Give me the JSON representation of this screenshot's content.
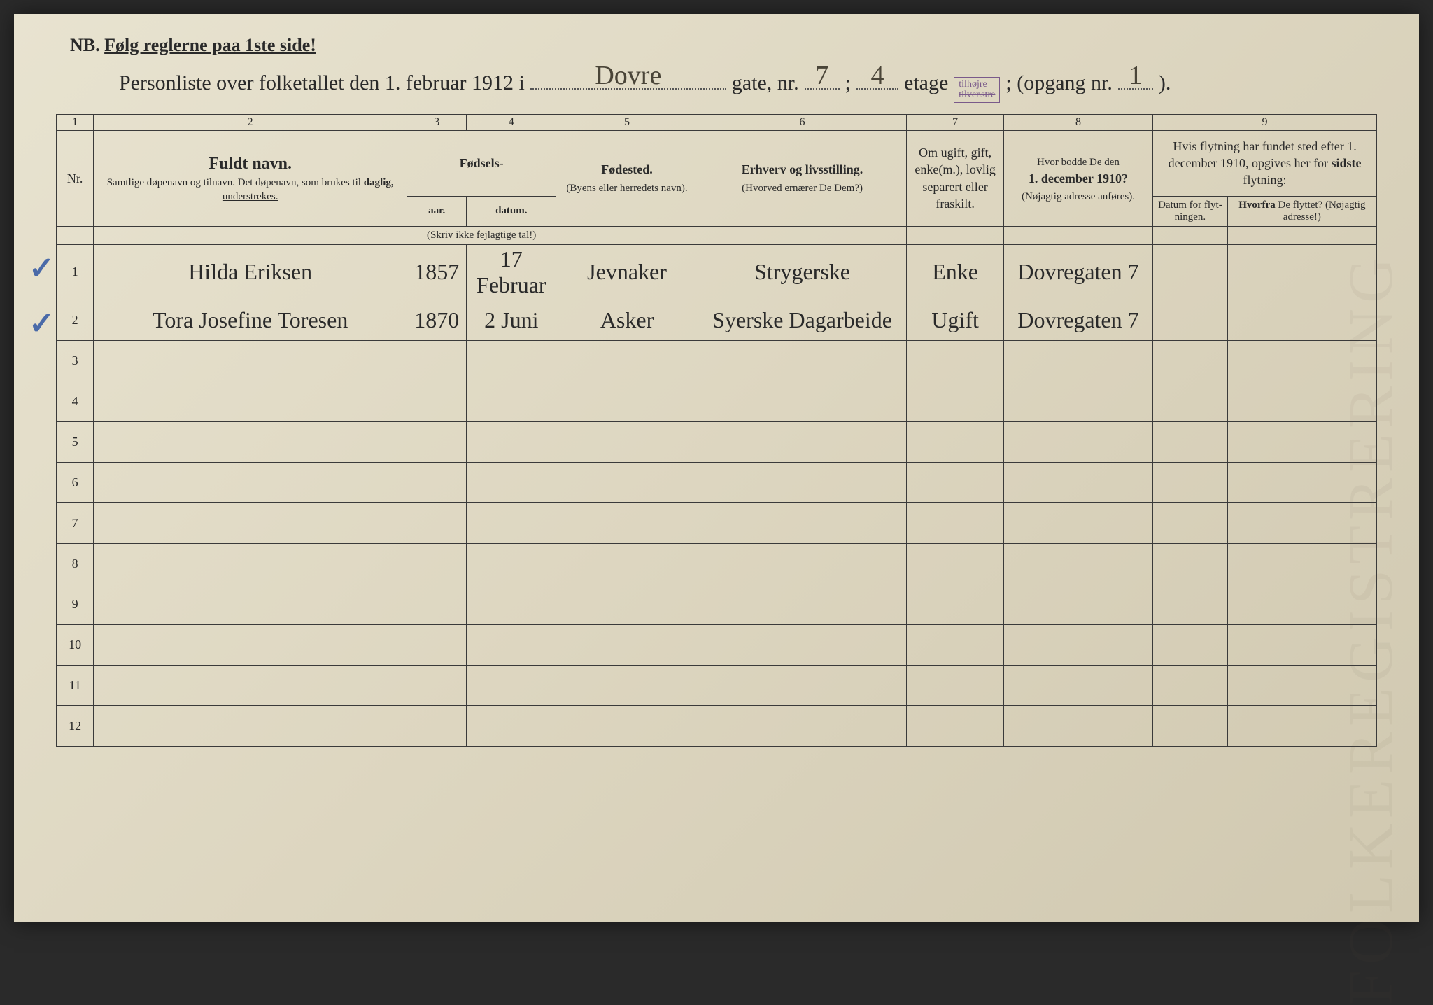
{
  "nb_prefix": "NB.",
  "nb_text": "Følg reglerne paa 1ste side!",
  "title_printed_1": "Personliste over folketallet den 1. februar 1912 i",
  "title_printed_2": "gate, nr.",
  "title_printed_3": ";",
  "title_printed_4": "etage",
  "title_printed_5": "; (opgang nr.",
  "title_printed_6": ").",
  "street": "Dovre",
  "house_nr": "7",
  "floor": "4",
  "entrance": "1",
  "stamp_top": "tilhøjre",
  "stamp_bottom": "tilvenstre",
  "colnums": [
    "1",
    "2",
    "3",
    "4",
    "5",
    "6",
    "7",
    "8",
    "9"
  ],
  "headers": {
    "nr": "Nr.",
    "name_big": "Fuldt navn.",
    "name_small_1": "Samtlige døpenavn og tilnavn. Det døpenavn, som brukes til",
    "name_small_2": "daglig,",
    "name_small_3": "understrekes.",
    "birth": "Fødsels-",
    "year": "aar.",
    "date": "datum.",
    "year_note": "(Skriv ikke fejlagtige tal!)",
    "place": "Fødested.",
    "place_note": "(Byens eller herredets navn).",
    "occ": "Erhverv og livsstilling.",
    "occ_note": "(Hvorved ernærer De Dem?)",
    "marital": "Om ugift, gift, enke(m.), lovlig separert eller fraskilt.",
    "addr1910": "Hvor bodde De den",
    "addr1910_date": "1. december 1910?",
    "addr1910_note": "(Nøjagtig adresse anføres).",
    "move_header": "Hvis flytning har fundet sted efter 1. december 1910, opgives her for",
    "move_header_bold": "sidste",
    "move_header_end": "flytning:",
    "move_date": "Datum for flyt-ningen.",
    "move_from": "Hvorfra",
    "move_from_2": "De flyttet? (Nøjagtig adresse!)"
  },
  "rows": [
    {
      "nr": "1",
      "check": true,
      "name": "Hilda Eriksen",
      "year": "1857",
      "date": "17 Februar",
      "place": "Jevnaker",
      "occ": "Strygerske",
      "marital": "Enke",
      "addr1910": "Dovregaten 7",
      "movedate": "",
      "movefrom": ""
    },
    {
      "nr": "2",
      "check": true,
      "name": "Tora Josefine Toresen",
      "year": "1870",
      "date": "2 Juni",
      "place": "Asker",
      "occ": "Syerske Dagarbeide",
      "marital": "Ugift",
      "addr1910": "Dovregaten 7",
      "movedate": "",
      "movefrom": ""
    },
    {
      "nr": "3"
    },
    {
      "nr": "4"
    },
    {
      "nr": "5"
    },
    {
      "nr": "6"
    },
    {
      "nr": "7"
    },
    {
      "nr": "8"
    },
    {
      "nr": "9"
    },
    {
      "nr": "10"
    },
    {
      "nr": "11"
    },
    {
      "nr": "12"
    }
  ],
  "colors": {
    "paper": "#e8e3d0",
    "ink": "#2a2a2a",
    "handwriting": "#4a4538",
    "checkmark": "#4a6aa8",
    "stamp": "#7a5a8a"
  }
}
